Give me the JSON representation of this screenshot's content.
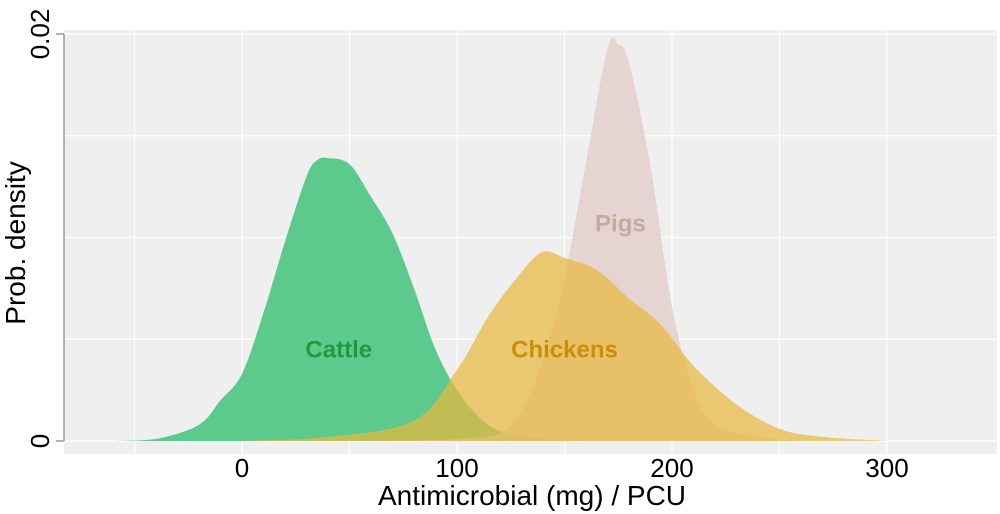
{
  "chart_data": {
    "type": "area",
    "title": "",
    "xlabel": "Antimicrobial (mg) / PCU",
    "ylabel": "Prob. density",
    "xlim": [
      -82,
      345
    ],
    "ylim": [
      0,
      0.02
    ],
    "x_ticks": [
      0,
      100,
      200,
      300
    ],
    "y_ticks": [
      0,
      0.02
    ],
    "x_tick_labels": [
      "0",
      "100",
      "200",
      "300"
    ],
    "y_tick_labels": [
      "0",
      "0.02"
    ],
    "grid": true,
    "legend": "none (inline labels)",
    "series": [
      {
        "name": "Cattle",
        "color": "#3cc278",
        "label_color": "#1f9a3e",
        "label_at": [
          45,
          0.0045
        ],
        "points": [
          [
            -60,
            0
          ],
          [
            -40,
            0.0001
          ],
          [
            -20,
            0.0008
          ],
          [
            -10,
            0.002
          ],
          [
            0,
            0.0033
          ],
          [
            10,
            0.0063
          ],
          [
            20,
            0.0098
          ],
          [
            30,
            0.013
          ],
          [
            35,
            0.0138
          ],
          [
            40,
            0.0139
          ],
          [
            50,
            0.0136
          ],
          [
            60,
            0.012
          ],
          [
            70,
            0.0102
          ],
          [
            80,
            0.0075
          ],
          [
            90,
            0.0045
          ],
          [
            100,
            0.0025
          ],
          [
            110,
            0.0012
          ],
          [
            120,
            0.0005
          ],
          [
            140,
            0.0001
          ],
          [
            160,
            0
          ]
        ]
      },
      {
        "name": "Pigs",
        "color": "#e2ccc8",
        "label_color": "#c4aaa0",
        "label_at": [
          176,
          0.0107
        ],
        "points": [
          [
            60,
            0
          ],
          [
            100,
            0.0001
          ],
          [
            120,
            0.0004
          ],
          [
            130,
            0.0015
          ],
          [
            140,
            0.004
          ],
          [
            150,
            0.008
          ],
          [
            160,
            0.0137
          ],
          [
            170,
            0.0193
          ],
          [
            175,
            0.0195
          ],
          [
            180,
            0.0186
          ],
          [
            190,
            0.0135
          ],
          [
            200,
            0.0066
          ],
          [
            210,
            0.0025
          ],
          [
            220,
            0.0008
          ],
          [
            240,
            0.0002
          ],
          [
            260,
            0
          ]
        ]
      },
      {
        "name": "Chickens",
        "color": "#e8b840",
        "label_color": "#c8900a",
        "label_at": [
          150,
          0.0045
        ],
        "points": [
          [
            0,
            0
          ],
          [
            40,
            0.0002
          ],
          [
            80,
            0.001
          ],
          [
            100,
            0.0035
          ],
          [
            115,
            0.0062
          ],
          [
            130,
            0.0083
          ],
          [
            140,
            0.0093
          ],
          [
            150,
            0.009
          ],
          [
            165,
            0.0084
          ],
          [
            180,
            0.007
          ],
          [
            195,
            0.0057
          ],
          [
            210,
            0.0037
          ],
          [
            230,
            0.0018
          ],
          [
            250,
            0.0006
          ],
          [
            270,
            0.0002
          ],
          [
            300,
            0
          ]
        ]
      }
    ]
  }
}
